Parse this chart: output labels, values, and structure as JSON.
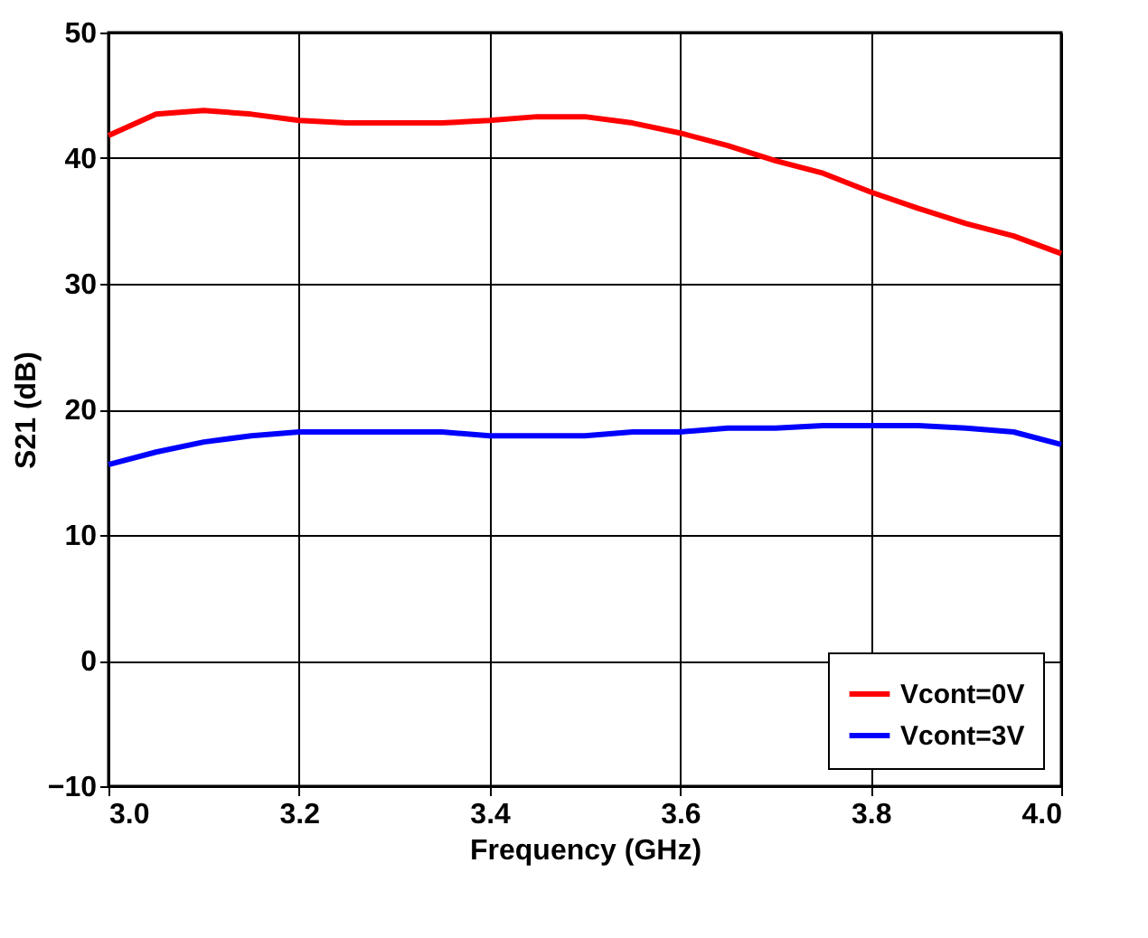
{
  "chart_data": {
    "type": "line",
    "xlabel": "Frequency (GHz)",
    "ylabel": "S21 (dB)",
    "x": [
      3.0,
      3.05,
      3.1,
      3.15,
      3.2,
      3.25,
      3.3,
      3.35,
      3.4,
      3.45,
      3.5,
      3.55,
      3.6,
      3.65,
      3.7,
      3.75,
      3.8,
      3.85,
      3.9,
      3.95,
      4.0
    ],
    "series": [
      {
        "name": "Vcont=0V",
        "color": "#ff0000",
        "values": [
          41.8,
          43.5,
          43.8,
          43.5,
          43.0,
          42.8,
          42.8,
          42.8,
          43.0,
          43.3,
          43.3,
          42.8,
          42.0,
          41.0,
          39.8,
          38.8,
          37.3,
          36.0,
          34.8,
          33.8,
          32.4
        ]
      },
      {
        "name": "Vcont=3V",
        "color": "#0000ff",
        "values": [
          15.6,
          16.6,
          17.4,
          17.9,
          18.2,
          18.2,
          18.2,
          18.2,
          17.9,
          17.9,
          17.9,
          18.2,
          18.2,
          18.5,
          18.5,
          18.7,
          18.7,
          18.7,
          18.5,
          18.2,
          17.2
        ]
      }
    ],
    "xlim": [
      3.0,
      4.0
    ],
    "xticks": [
      {
        "value": 3.0,
        "label": "3.0"
      },
      {
        "value": 3.2,
        "label": "3.2"
      },
      {
        "value": 3.4,
        "label": "3.4"
      },
      {
        "value": 3.6,
        "label": "3.6"
      },
      {
        "value": 3.8,
        "label": "3.8"
      },
      {
        "value": 4.0,
        "label": "4.0"
      }
    ],
    "ylim": [
      -10,
      50
    ],
    "yticks": [
      -10,
      0,
      10,
      20,
      30,
      40,
      50
    ],
    "grid": true,
    "legend": "bottom right",
    "marker": "none",
    "line_style": "solid"
  }
}
